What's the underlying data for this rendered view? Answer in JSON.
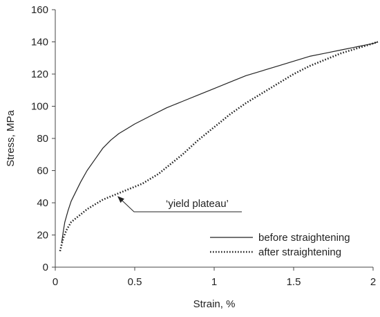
{
  "chart_data": {
    "type": "line",
    "title": "",
    "xlabel": "Strain, %",
    "ylabel": "Stress, MPa",
    "xlim": [
      0,
      2
    ],
    "ylim": [
      0,
      160
    ],
    "x_ticks": [
      0,
      0.5,
      1,
      1.5,
      2
    ],
    "x_tick_labels": [
      "0",
      "0.5",
      "1",
      "1.5",
      "2"
    ],
    "y_ticks": [
      0,
      20,
      40,
      60,
      80,
      100,
      120,
      140,
      160
    ],
    "y_tick_labels": [
      "0",
      "20",
      "40",
      "60",
      "80",
      "100",
      "120",
      "140",
      "160"
    ],
    "grid": false,
    "legend_position": "bottom-right",
    "series": [
      {
        "name": "before straightening",
        "style": "solid",
        "color": "#222222",
        "x": [
          0.04,
          0.05,
          0.06,
          0.08,
          0.1,
          0.13,
          0.16,
          0.2,
          0.25,
          0.3,
          0.35,
          0.4,
          0.45,
          0.5,
          0.6,
          0.7,
          0.8,
          0.9,
          1.0,
          1.1,
          1.2,
          1.3,
          1.4,
          1.5,
          1.6,
          1.7,
          1.8,
          1.9,
          2.0,
          2.03
        ],
        "y": [
          15,
          22,
          28,
          35,
          41,
          47,
          53,
          60,
          67,
          74,
          79,
          83,
          86,
          89,
          94,
          99,
          103,
          107,
          111,
          115,
          119,
          122,
          125,
          128,
          131,
          133,
          135,
          137,
          139,
          140
        ]
      },
      {
        "name": "after straightening",
        "style": "dotted",
        "color": "#222222",
        "x": [
          0.03,
          0.05,
          0.07,
          0.1,
          0.15,
          0.2,
          0.25,
          0.3,
          0.35,
          0.4,
          0.45,
          0.5,
          0.55,
          0.6,
          0.65,
          0.7,
          0.8,
          0.9,
          1.0,
          1.1,
          1.2,
          1.3,
          1.4,
          1.5,
          1.6,
          1.7,
          1.8,
          1.9,
          2.0,
          2.03
        ],
        "y": [
          10,
          18,
          23,
          28,
          32,
          36,
          39,
          42,
          44,
          46,
          48,
          50,
          52,
          55,
          58,
          62,
          70,
          79,
          87,
          95,
          102,
          108,
          114,
          120,
          125,
          129,
          133,
          136,
          139,
          140
        ]
      }
    ],
    "annotations": [
      {
        "text": "‘yield plateau’",
        "arrow_to": [
          0.39,
          43
        ]
      }
    ]
  }
}
